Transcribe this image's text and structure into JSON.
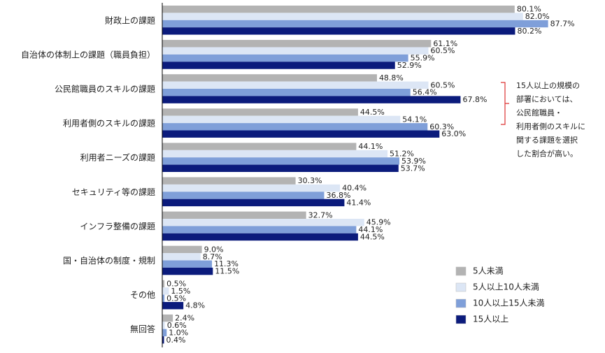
{
  "chart_data": {
    "type": "bar",
    "orientation": "horizontal",
    "categories": [
      "財政上の課題",
      "自治体の体制上の課題（職員負担）",
      "公民館職員のスキルの課題",
      "利用者側のスキルの課題",
      "利用者ニーズの課題",
      "セキュリティ等の課題",
      "インフラ整備の課題",
      "国・自治体の制度・規制",
      "その他",
      "無回答"
    ],
    "series": [
      {
        "name": "5人未満",
        "color": "#b3b3b3",
        "values": [
          80.1,
          61.1,
          48.8,
          44.5,
          44.1,
          30.3,
          32.7,
          9.0,
          0.5,
          2.4
        ],
        "value_labels": [
          "80.1%",
          "61.1%",
          "48.8%",
          "44.5%",
          "44.1%",
          "30.3%",
          "32.7%",
          "9.0%",
          "0.5%",
          "2.4%"
        ]
      },
      {
        "name": "5人以上10人未満",
        "color": "#dce6f5",
        "values": [
          82.0,
          60.5,
          60.5,
          54.1,
          51.2,
          40.4,
          45.9,
          8.7,
          1.5,
          0.6
        ],
        "value_labels": [
          "82.0%",
          "60.5%",
          "60.5%",
          "54.1%",
          "51.2%",
          "40.4%",
          "45.9%",
          "8.7%",
          "1.5%",
          "0.6%"
        ]
      },
      {
        "name": "10人以上15人未満",
        "color": "#7f9fd9",
        "values": [
          87.7,
          55.9,
          56.4,
          60.3,
          53.9,
          36.8,
          44.1,
          11.3,
          0.5,
          1.0
        ],
        "value_labels": [
          "87.7%",
          "55.9%",
          "56.4%",
          "60.3%",
          "53.9%",
          "36.8%",
          "44.1%",
          "11.3%",
          "0.5%",
          "1.0%"
        ]
      },
      {
        "name": "15人以上",
        "color": "#0b1b7c",
        "values": [
          80.2,
          52.9,
          67.8,
          63.0,
          53.7,
          41.4,
          44.5,
          11.5,
          4.8,
          0.4
        ],
        "value_labels": [
          "80.2%",
          "52.9%",
          "67.8%",
          "63.0%",
          "53.7%",
          "41.4%",
          "44.5%",
          "11.5%",
          "4.8%",
          "0.4%"
        ]
      }
    ],
    "annotation": [
      "15人以上の規模の",
      "部署においては、",
      "公民館職員・",
      "利用者側のスキルに",
      "関する課題を選択",
      "した割合が高い。"
    ],
    "legend": "bottom-right"
  }
}
